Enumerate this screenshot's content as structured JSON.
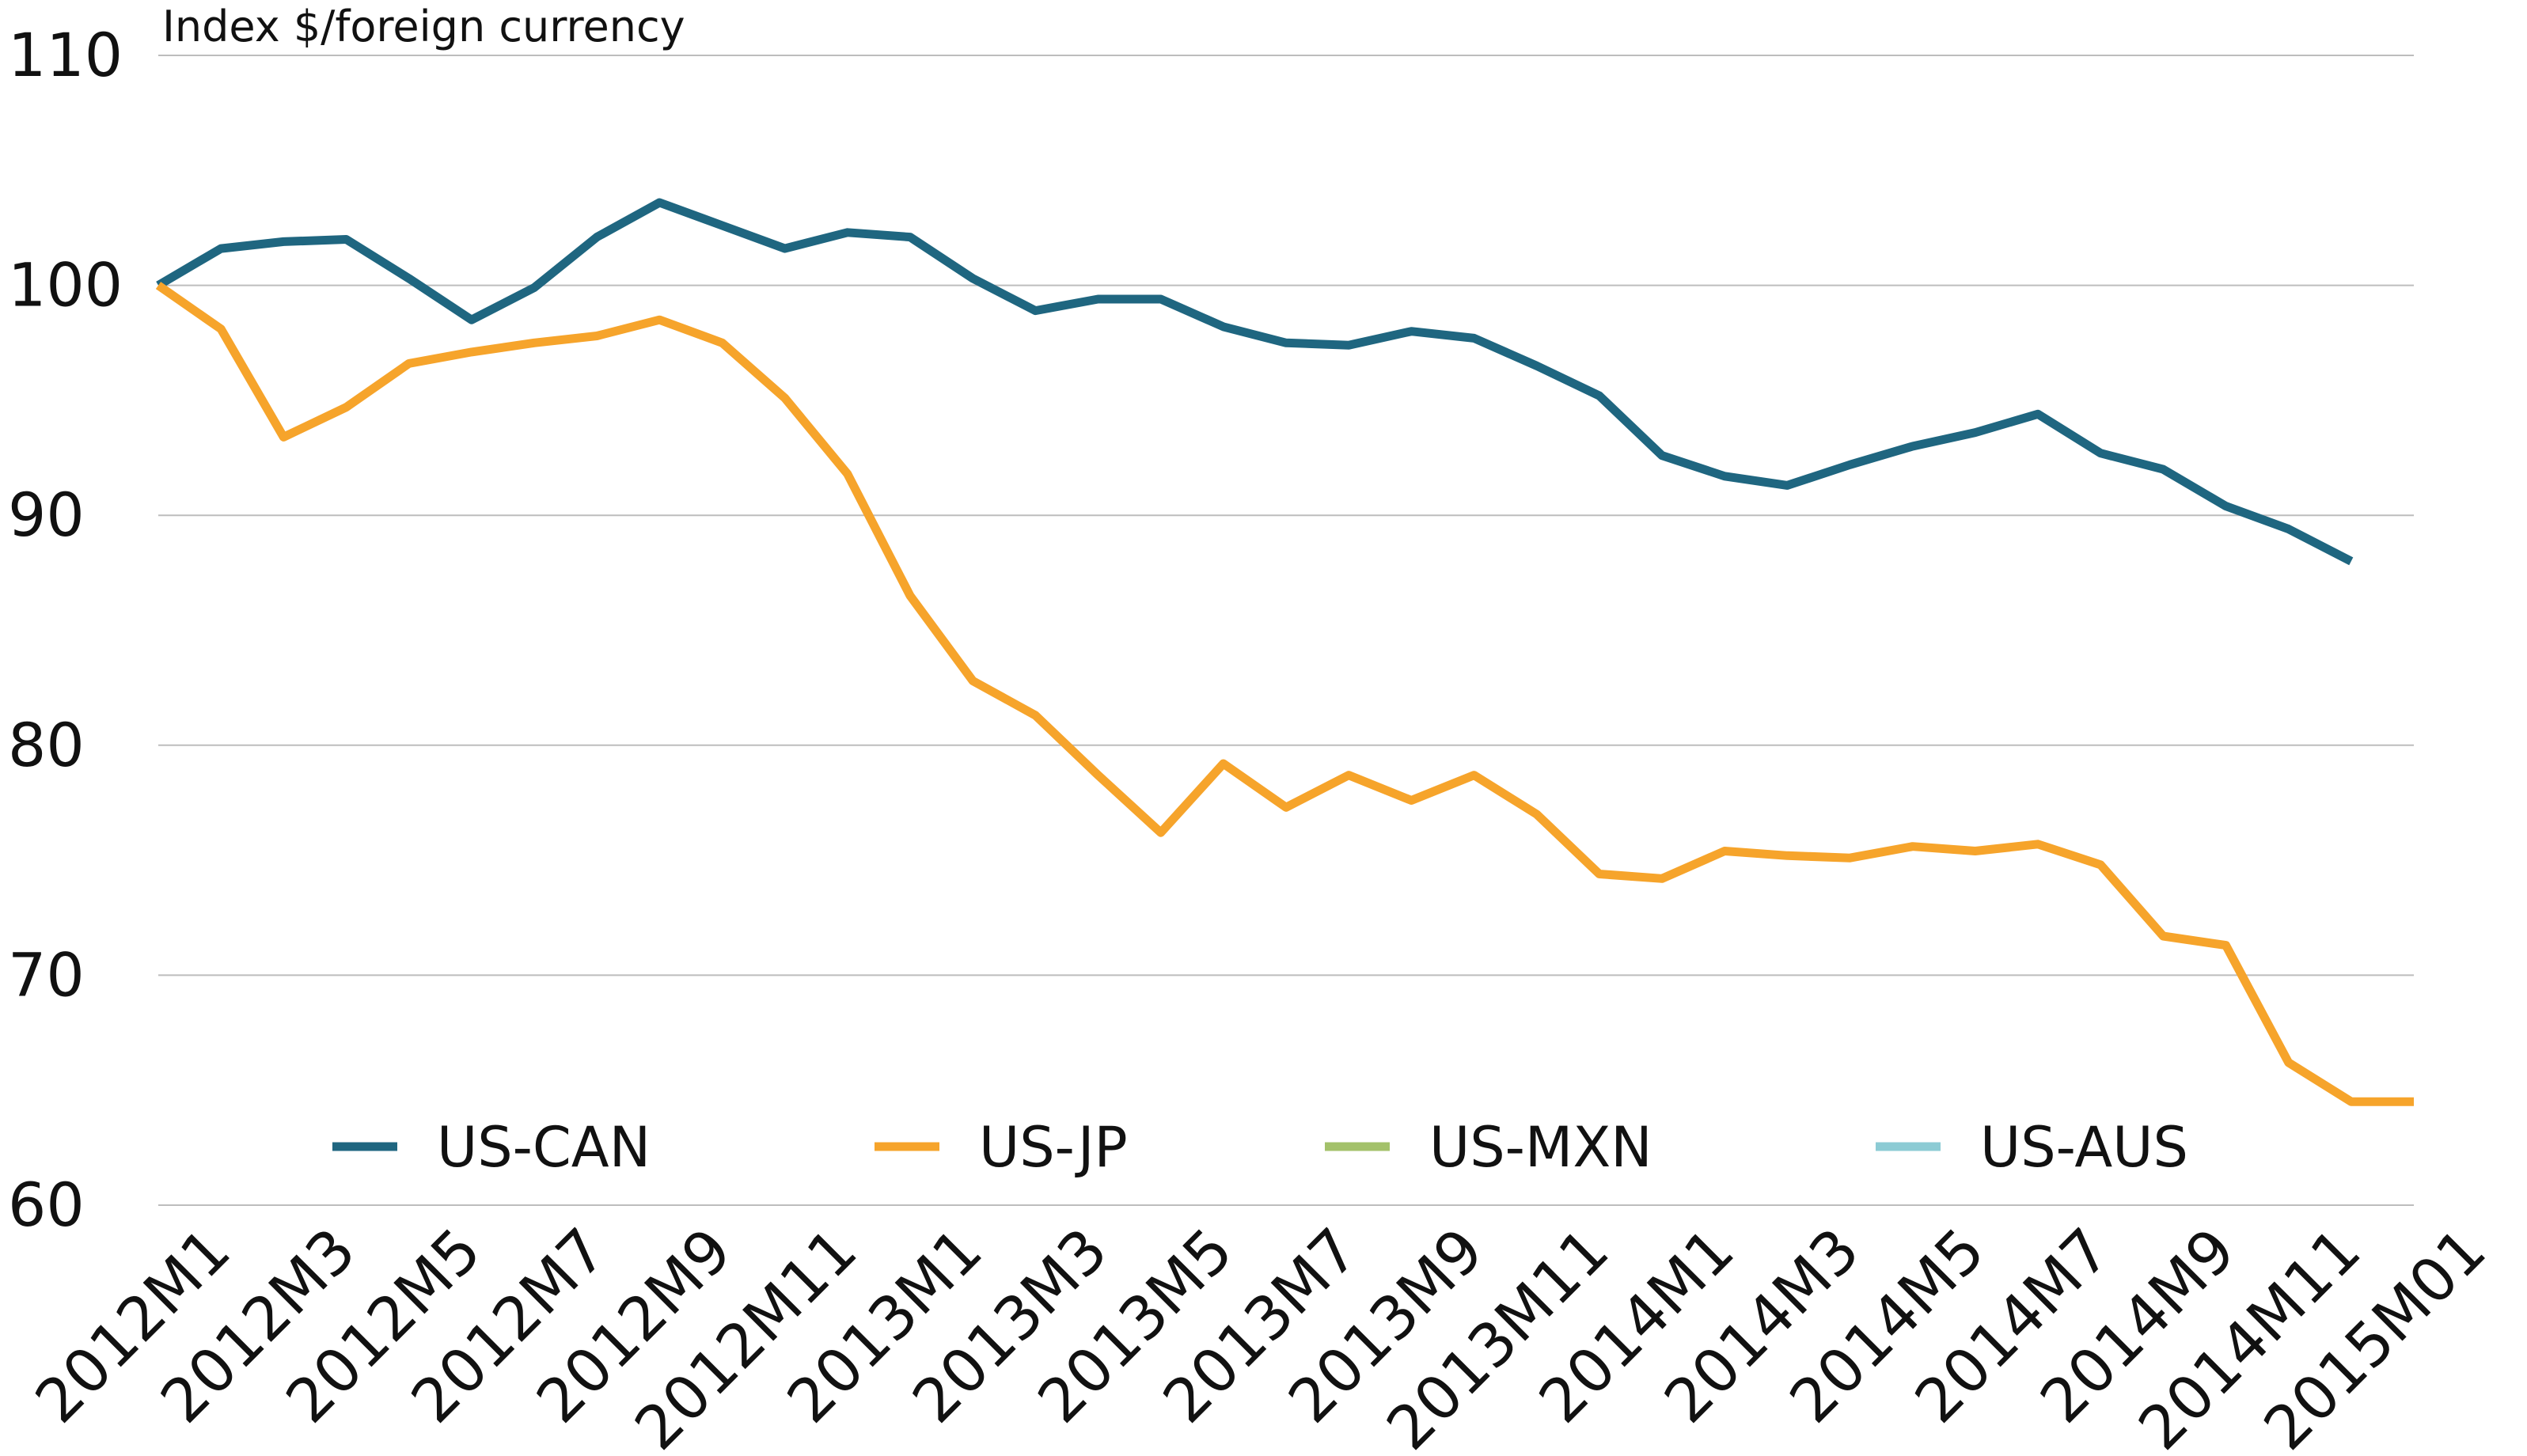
{
  "chart_data": {
    "type": "line",
    "ylabel": "Index $/foreign currency",
    "categories": [
      "2012M1",
      null,
      "2012M3",
      null,
      "2012M5",
      null,
      "2012M7",
      null,
      "2012M9",
      null,
      "2012M11",
      null,
      "2013M1",
      null,
      "2013M3",
      null,
      "2013M5",
      null,
      "2013M7",
      null,
      "2013M9",
      null,
      "2013M11",
      null,
      "2014M1",
      null,
      "2014M3",
      null,
      "2014M5",
      null,
      "2014M7",
      null,
      "2014M9",
      null,
      "2014M11",
      null,
      "2015M01"
    ],
    "series": [
      {
        "name": "US-CAN",
        "color": "#1f6680",
        "values": [
          100,
          101.6,
          101.9,
          102.0,
          100.3,
          98.5,
          99.9,
          102.1,
          103.6,
          102.6,
          101.6,
          102.3,
          102.1,
          100.3,
          98.9,
          99.4,
          99.4,
          98.2,
          97.5,
          97.4,
          98.0,
          97.7,
          96.5,
          95.2,
          92.6,
          91.7,
          91.3,
          92.2,
          93.0,
          93.6,
          94.4,
          92.7,
          92.0,
          90.4,
          89.4,
          88.0,
          null
        ]
      },
      {
        "name": "US-JP",
        "color": "#f6a42b",
        "values": [
          100,
          98.1,
          93.4,
          94.7,
          96.6,
          97.1,
          97.5,
          97.8,
          98.5,
          97.5,
          95.1,
          91.8,
          86.5,
          82.8,
          81.3,
          78.7,
          76.2,
          79.2,
          77.3,
          78.7,
          77.6,
          78.7,
          77.0,
          74.4,
          74.2,
          75.4,
          75.2,
          75.1,
          75.6,
          75.4,
          75.7,
          74.8,
          71.7,
          71.3,
          66.2,
          64.5,
          64.5
        ]
      },
      {
        "name": "US-MXN",
        "color": "#a3c16a",
        "values": [
          null,
          null,
          null,
          null,
          null,
          null,
          null,
          null,
          null,
          null,
          null,
          null,
          null,
          null,
          null,
          null,
          null,
          null,
          null,
          null,
          null,
          null,
          null,
          null,
          null,
          null,
          null,
          null,
          null,
          null,
          null,
          null,
          null,
          null,
          null,
          null,
          null
        ]
      },
      {
        "name": "US-AUS",
        "color": "#8ccbd4",
        "values": [
          null,
          null,
          null,
          null,
          null,
          null,
          null,
          null,
          null,
          null,
          null,
          null,
          null,
          null,
          null,
          null,
          null,
          null,
          null,
          null,
          null,
          null,
          null,
          null,
          null,
          null,
          null,
          null,
          null,
          null,
          null,
          null,
          null,
          null,
          null,
          null,
          null
        ]
      }
    ],
    "ylim": [
      60,
      110
    ],
    "yticks": [
      60,
      70,
      80,
      90,
      100,
      110
    ],
    "grid": true,
    "legend": "bottom"
  }
}
